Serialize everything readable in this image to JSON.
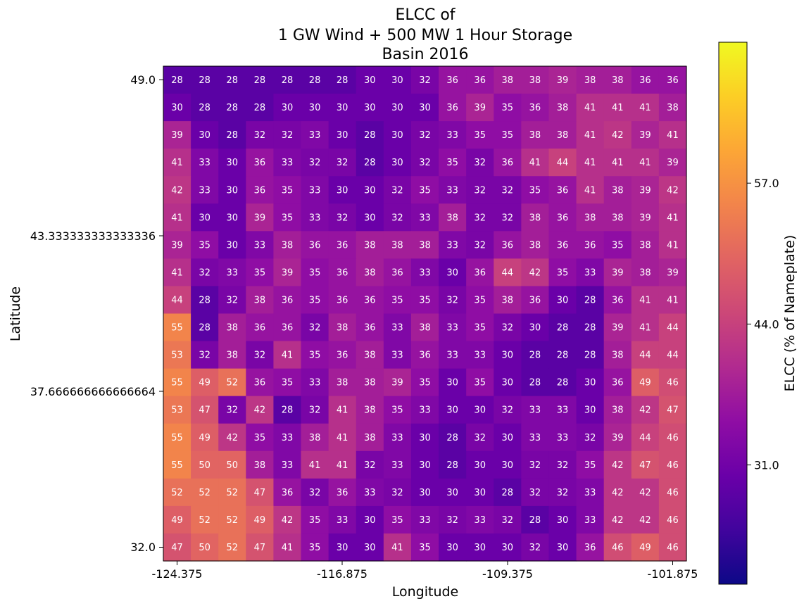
{
  "chart_data": {
    "type": "heatmap",
    "title_lines": [
      "ELCC of",
      "1 GW Wind + 500 MW 1 Hour Storage",
      "Basin 2016"
    ],
    "xlabel": "Longitude",
    "ylabel": "Latitude",
    "x_ticks": [
      "-124.375",
      "-116.875",
      "-109.375",
      "-101.875"
    ],
    "y_ticks": [
      "49.0",
      "43.333333333333336",
      "37.666666666666664",
      "32.0"
    ],
    "xlim": [
      -124.375,
      -101.875
    ],
    "ylim": [
      32.0,
      49.0
    ],
    "colorbar": {
      "label": "ELCC (% of Nameplate)",
      "ticks": [
        "57.0",
        "44.0",
        "31.0"
      ],
      "tick_values": [
        57.0,
        44.0,
        31.0
      ],
      "range": [
        20,
        70
      ],
      "colormap": "plasma"
    },
    "values": [
      [
        28,
        28,
        28,
        28,
        28,
        28,
        28,
        30,
        30,
        32,
        36,
        36,
        38,
        38,
        39,
        38,
        38,
        36,
        36
      ],
      [
        30,
        28,
        28,
        28,
        30,
        30,
        30,
        30,
        30,
        30,
        36,
        39,
        35,
        36,
        38,
        41,
        41,
        41,
        38
      ],
      [
        39,
        30,
        28,
        32,
        32,
        33,
        30,
        28,
        30,
        32,
        33,
        35,
        35,
        38,
        38,
        41,
        42,
        39,
        41
      ],
      [
        41,
        33,
        30,
        36,
        33,
        32,
        32,
        28,
        30,
        32,
        35,
        32,
        36,
        41,
        44,
        41,
        41,
        41,
        39
      ],
      [
        42,
        33,
        30,
        36,
        35,
        33,
        30,
        30,
        32,
        35,
        33,
        32,
        32,
        35,
        36,
        41,
        38,
        39,
        42
      ],
      [
        41,
        30,
        30,
        39,
        35,
        33,
        32,
        30,
        32,
        33,
        38,
        32,
        32,
        38,
        36,
        38,
        38,
        39,
        41
      ],
      [
        39,
        35,
        30,
        33,
        38,
        36,
        36,
        38,
        38,
        38,
        33,
        32,
        36,
        38,
        36,
        36,
        35,
        38,
        41
      ],
      [
        41,
        32,
        33,
        35,
        39,
        35,
        36,
        38,
        36,
        33,
        30,
        36,
        44,
        42,
        35,
        33,
        39,
        38,
        39
      ],
      [
        44,
        28,
        32,
        38,
        36,
        35,
        36,
        36,
        35,
        35,
        32,
        35,
        38,
        36,
        30,
        28,
        36,
        41,
        41
      ],
      [
        55,
        28,
        38,
        36,
        36,
        32,
        38,
        36,
        33,
        38,
        33,
        35,
        32,
        30,
        28,
        28,
        39,
        41,
        44
      ],
      [
        53,
        32,
        38,
        32,
        41,
        35,
        36,
        38,
        33,
        36,
        33,
        33,
        30,
        28,
        28,
        28,
        38,
        44,
        44
      ],
      [
        55,
        49,
        52,
        36,
        35,
        33,
        38,
        38,
        39,
        35,
        30,
        35,
        30,
        28,
        28,
        30,
        36,
        49,
        46
      ],
      [
        53,
        47,
        32,
        42,
        28,
        32,
        41,
        38,
        35,
        33,
        30,
        30,
        32,
        33,
        33,
        30,
        38,
        42,
        47
      ],
      [
        55,
        49,
        42,
        35,
        33,
        38,
        41,
        38,
        33,
        30,
        28,
        32,
        30,
        33,
        33,
        32,
        39,
        44,
        46
      ],
      [
        55,
        50,
        50,
        38,
        33,
        41,
        41,
        32,
        33,
        30,
        28,
        30,
        30,
        32,
        32,
        35,
        42,
        47,
        46
      ],
      [
        52,
        52,
        52,
        47,
        36,
        32,
        36,
        33,
        32,
        30,
        30,
        30,
        28,
        32,
        32,
        33,
        42,
        42,
        46
      ],
      [
        49,
        52,
        52,
        49,
        42,
        35,
        33,
        30,
        35,
        33,
        32,
        33,
        32,
        28,
        30,
        33,
        42,
        42,
        46
      ],
      [
        47,
        50,
        52,
        47,
        41,
        35,
        30,
        30,
        41,
        35,
        30,
        30,
        30,
        32,
        30,
        36,
        46,
        49,
        46
      ]
    ]
  }
}
